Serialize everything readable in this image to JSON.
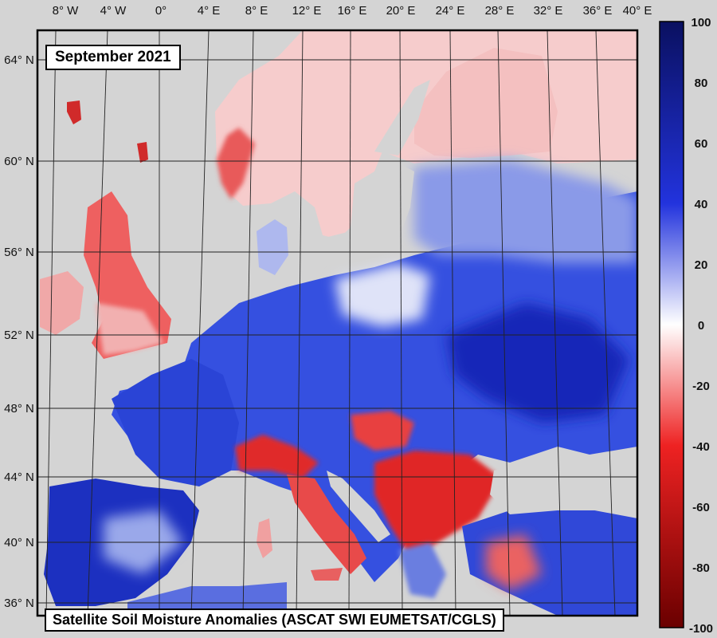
{
  "map": {
    "title": "September 2021",
    "caption": "Satellite Soil Moisture Anomalies (ASCAT SWI EUMETSAT/CGLS)",
    "longitude_labels": [
      "8° W",
      "4° W",
      "0°",
      "4° E",
      "8° E",
      "12° E",
      "16° E",
      "20° E",
      "24° E",
      "28° E",
      "32° E",
      "36° E",
      "40° E"
    ],
    "latitude_labels": [
      "64° N",
      "60° N",
      "56° N",
      "52° N",
      "48° N",
      "44° N",
      "40° N",
      "36° N"
    ],
    "colorbar": {
      "ticks": [
        "100",
        "80",
        "60",
        "40",
        "20",
        "0",
        "-20",
        "-40",
        "-60",
        "-80",
        "-100"
      ],
      "range": [
        -100,
        100
      ],
      "colors": {
        "high": "#0a1060",
        "mid_high": "#2233dd",
        "zero": "#ffffff",
        "mid_low": "#ee2222",
        "low": "#6a0000"
      }
    },
    "colors": {
      "ocean": "#d4d4d4",
      "wet": "#2b44d8",
      "dry": "#e8382e",
      "slightly_dry": "#f4bcbc",
      "slightly_wet": "#aab6f0",
      "no_data": "#c4c4c4"
    }
  }
}
